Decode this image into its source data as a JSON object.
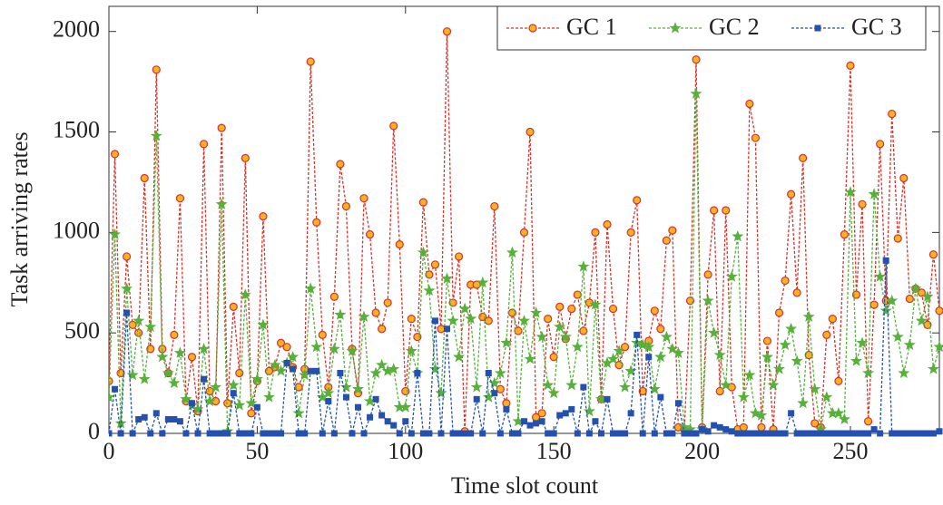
{
  "chart_data": {
    "type": "line",
    "xlabel": "Time slot count",
    "ylabel": "Task arriving rates",
    "x": [
      0,
      2,
      4,
      6,
      8,
      10,
      12,
      14,
      16,
      18,
      20,
      22,
      24,
      26,
      28,
      30,
      32,
      34,
      36,
      38,
      40,
      42,
      44,
      46,
      48,
      50,
      52,
      54,
      56,
      58,
      60,
      62,
      64,
      66,
      68,
      70,
      72,
      74,
      76,
      78,
      80,
      82,
      84,
      86,
      88,
      90,
      92,
      94,
      96,
      98,
      100,
      102,
      104,
      106,
      108,
      110,
      112,
      114,
      116,
      118,
      120,
      122,
      124,
      126,
      128,
      130,
      132,
      134,
      136,
      138,
      140,
      142,
      144,
      146,
      148,
      150,
      152,
      154,
      156,
      158,
      160,
      162,
      164,
      166,
      168,
      170,
      172,
      174,
      176,
      178,
      180,
      182,
      184,
      186,
      188,
      190,
      192,
      194,
      196,
      198,
      200,
      202,
      204,
      206,
      208,
      210,
      212,
      214,
      216,
      218,
      220,
      222,
      224,
      226,
      228,
      230,
      232,
      234,
      236,
      238,
      240,
      242,
      244,
      246,
      248,
      250,
      252,
      254,
      256,
      258,
      260,
      262,
      264,
      266,
      268,
      270,
      272,
      274,
      276,
      278,
      280
    ],
    "series": [
      {
        "name": "GC 1",
        "color": "#d9302a",
        "marker_fill": "#f5b324",
        "marker": "circle",
        "values": [
          260,
          1390,
          300,
          880,
          540,
          500,
          1270,
          420,
          1810,
          420,
          300,
          490,
          1170,
          160,
          380,
          110,
          1440,
          210,
          160,
          1520,
          150,
          630,
          300,
          1370,
          100,
          260,
          1080,
          310,
          330,
          450,
          430,
          330,
          230,
          320,
          1850,
          1050,
          490,
          230,
          680,
          1340,
          1130,
          420,
          200,
          1170,
          990,
          600,
          520,
          650,
          1530,
          940,
          210,
          570,
          480,
          1150,
          790,
          840,
          520,
          2000,
          650,
          880,
          10,
          740,
          740,
          580,
          560,
          1130,
          220,
          150,
          600,
          510,
          1000,
          1500,
          80,
          100,
          570,
          380,
          630,
          470,
          620,
          690,
          510,
          650,
          1000,
          170,
          1040,
          620,
          340,
          430,
          1000,
          1160,
          210,
          460,
          610,
          520,
          960,
          1010,
          30,
          20,
          660,
          1860,
          30,
          790,
          1110,
          210,
          1110,
          230,
          20,
          30,
          1640,
          1470,
          30,
          460,
          20,
          600,
          760,
          1190,
          700,
          1370,
          390,
          50,
          30,
          490,
          570,
          260,
          990,
          1830,
          690,
          1140,
          60,
          640,
          1440,
          660,
          1590,
          970,
          1270,
          670,
          720,
          700,
          540,
          890,
          610
        ]
      },
      {
        "name": "GC 2",
        "color": "#56b03a",
        "marker_fill": "#56b03a",
        "marker": "star",
        "values": [
          180,
          990,
          50,
          720,
          290,
          560,
          270,
          530,
          1480,
          380,
          300,
          250,
          400,
          170,
          140,
          120,
          420,
          160,
          230,
          1140,
          10,
          240,
          140,
          690,
          150,
          270,
          540,
          180,
          340,
          310,
          350,
          380,
          100,
          290,
          720,
          430,
          180,
          200,
          420,
          590,
          230,
          410,
          220,
          580,
          160,
          300,
          340,
          310,
          320,
          130,
          130,
          410,
          300,
          900,
          710,
          320,
          200,
          770,
          560,
          380,
          620,
          570,
          230,
          750,
          180,
          250,
          300,
          450,
          900,
          60,
          560,
          370,
          600,
          480,
          240,
          200,
          530,
          480,
          240,
          430,
          830,
          110,
          640,
          170,
          350,
          370,
          410,
          230,
          310,
          450,
          440,
          430,
          220,
          380,
          480,
          420,
          400,
          30,
          20,
          1690,
          20,
          660,
          500,
          390,
          240,
          780,
          980,
          180,
          290,
          100,
          90,
          380,
          240,
          320,
          440,
          520,
          360,
          150,
          580,
          220,
          20,
          180,
          100,
          100,
          70,
          1200,
          360,
          450,
          300,
          1190,
          780,
          610,
          660,
          480,
          300,
          440,
          720,
          560,
          680,
          320,
          430
        ]
      },
      {
        "name": "GC 3",
        "color": "#2450b0",
        "marker_fill": "#2450b0",
        "marker": "square",
        "values": [
          0,
          220,
          0,
          600,
          0,
          70,
          80,
          0,
          100,
          0,
          70,
          70,
          60,
          0,
          150,
          0,
          270,
          0,
          0,
          0,
          0,
          200,
          0,
          0,
          0,
          130,
          0,
          0,
          0,
          0,
          350,
          320,
          0,
          0,
          310,
          310,
          0,
          160,
          0,
          300,
          180,
          0,
          130,
          0,
          80,
          170,
          90,
          60,
          40,
          0,
          60,
          0,
          300,
          0,
          0,
          560,
          0,
          520,
          0,
          0,
          0,
          0,
          170,
          0,
          300,
          200,
          0,
          120,
          0,
          0,
          60,
          40,
          50,
          60,
          0,
          0,
          90,
          100,
          120,
          0,
          230,
          0,
          60,
          0,
          170,
          0,
          0,
          0,
          100,
          490,
          0,
          380,
          0,
          180,
          0,
          0,
          150,
          0,
          0,
          0,
          20,
          10,
          40,
          30,
          20,
          10,
          0,
          0,
          0,
          0,
          0,
          0,
          0,
          0,
          0,
          100,
          0,
          0,
          0,
          0,
          0,
          0,
          0,
          0,
          0,
          0,
          0,
          0,
          0,
          20,
          0,
          860,
          0,
          0,
          0,
          0,
          0,
          0,
          0,
          0,
          10
        ]
      }
    ],
    "xlim": [
      0,
      280
    ],
    "xticks": [
      0,
      50,
      100,
      150,
      200,
      250
    ],
    "ylim": [
      0,
      2125
    ],
    "yticks": [
      0,
      500,
      1000,
      1500,
      2000
    ],
    "grid": false,
    "legend": "upper right"
  }
}
